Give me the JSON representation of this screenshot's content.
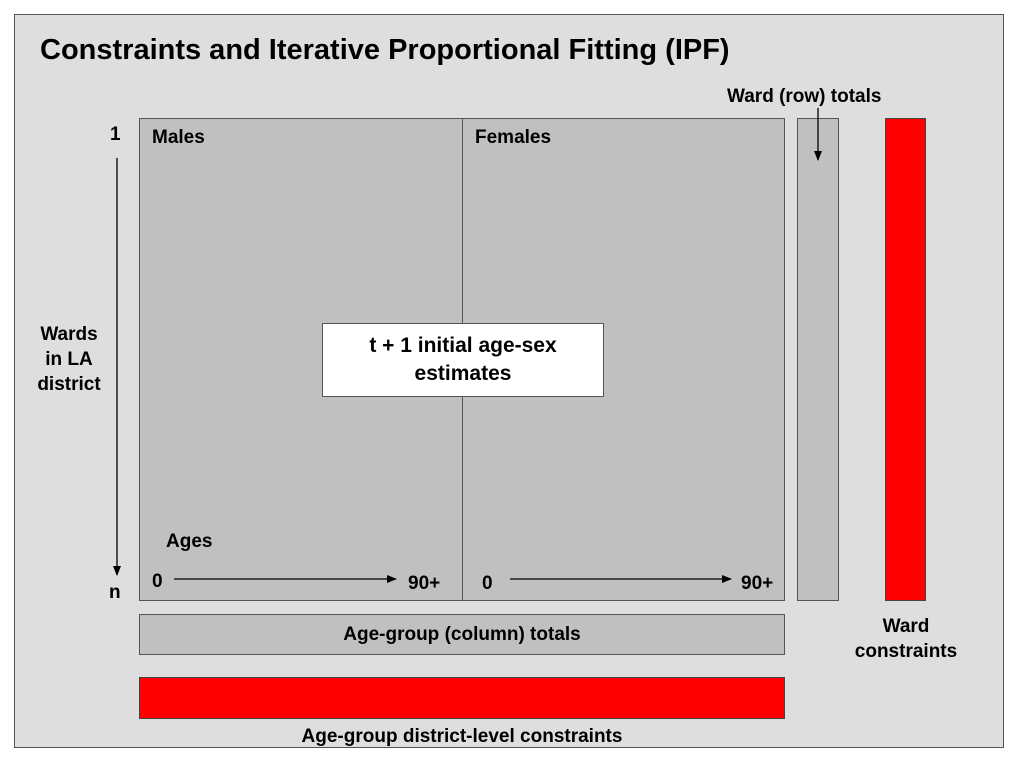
{
  "title": "Constraints and Iterative Proportional Fitting (IPF)",
  "ward_row_totals_label": "Ward (row) totals",
  "wards_axis": {
    "start": "1",
    "end": "n",
    "label_lines": [
      "Wards",
      "in LA",
      "district"
    ]
  },
  "grid": {
    "males_label": "Males",
    "females_label": "Females",
    "ages_label": "Ages",
    "age_start": "0",
    "age_end": "90+",
    "center_text_lines": [
      "t + 1 initial age-sex",
      "estimates"
    ]
  },
  "column_totals_label": "Age-group (column) totals",
  "ward_constraints_lines": [
    "Ward",
    "constraints"
  ],
  "age_group_constraints_label": "Age-group district-level constraints",
  "colors": {
    "background": "#dedede",
    "cell_fill": "#c0c0c0",
    "constraint_red": "#ff0000"
  }
}
